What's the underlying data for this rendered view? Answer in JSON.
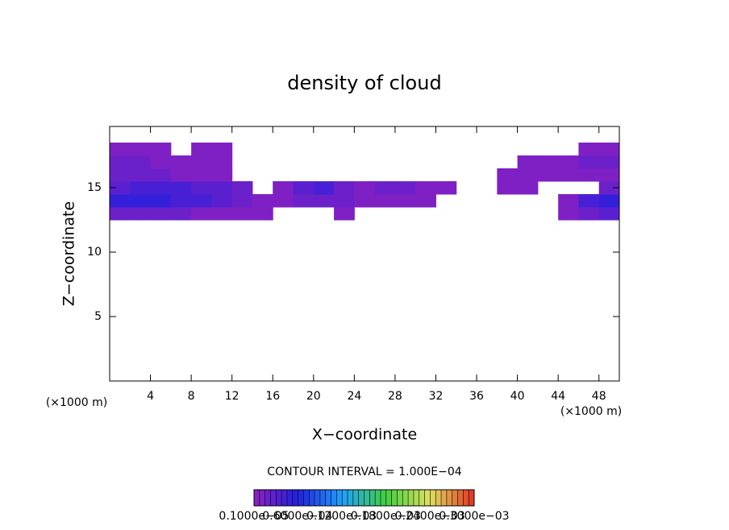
{
  "chart_data": {
    "type": "heatmap",
    "title": "density of cloud",
    "xlabel": "X−coordinate",
    "ylabel": "Z−coordinate",
    "xunit": "(×1000 m)",
    "yunit": "(×1000 m)",
    "annotation": "CONTOUR INTERVAL = 1.000E−04",
    "xlim": [
      0,
      50
    ],
    "ylim": [
      0,
      19.75
    ],
    "xticks": [
      4,
      8,
      12,
      16,
      20,
      24,
      28,
      32,
      36,
      40,
      44,
      48
    ],
    "yticks": [
      5,
      10,
      15
    ],
    "x": [
      1,
      3,
      5,
      7,
      9,
      11,
      13,
      15,
      17,
      19,
      21,
      23,
      25,
      27,
      29,
      31,
      33,
      35,
      37,
      39,
      41,
      43,
      45,
      47,
      49
    ],
    "y": [
      13,
      14,
      15,
      16,
      17,
      18
    ],
    "z": [
      [
        2e-05,
        2e-05,
        2e-05,
        2e-05,
        1e-05,
        1e-05,
        1e-05,
        1e-05,
        null,
        null,
        null,
        1e-05,
        null,
        null,
        null,
        null,
        null,
        null,
        null,
        null,
        null,
        null,
        1e-05,
        2e-05,
        3e-05
      ],
      [
        5e-05,
        5e-05,
        5e-05,
        4e-05,
        4e-05,
        3e-05,
        2e-05,
        1e-05,
        1e-05,
        2e-05,
        2e-05,
        2e-05,
        1e-05,
        1e-05,
        1e-05,
        1e-05,
        null,
        null,
        null,
        null,
        null,
        null,
        1e-05,
        4e-05,
        5e-05
      ],
      [
        3e-05,
        4e-05,
        4e-05,
        4e-05,
        3e-05,
        3e-05,
        2e-05,
        null,
        1e-05,
        3e-05,
        4e-05,
        2e-05,
        1e-05,
        2e-05,
        2e-05,
        1e-05,
        1e-05,
        null,
        null,
        1e-05,
        1e-05,
        null,
        null,
        null,
        2e-05
      ],
      [
        2e-05,
        2e-05,
        2e-05,
        1e-05,
        1e-05,
        1e-05,
        null,
        null,
        null,
        null,
        null,
        null,
        null,
        null,
        null,
        null,
        null,
        null,
        null,
        1e-05,
        1e-05,
        1e-05,
        1e-05,
        1e-05,
        1e-05
      ],
      [
        2e-05,
        2e-05,
        1e-05,
        1e-05,
        1e-05,
        1e-05,
        null,
        null,
        null,
        null,
        null,
        null,
        null,
        null,
        null,
        null,
        null,
        null,
        null,
        null,
        1e-05,
        1e-05,
        1e-05,
        2e-05,
        2e-05
      ],
      [
        1e-05,
        1e-05,
        1e-05,
        null,
        1e-05,
        1e-05,
        null,
        null,
        null,
        null,
        null,
        null,
        null,
        null,
        null,
        null,
        null,
        null,
        null,
        null,
        null,
        null,
        null,
        1e-05,
        1e-05
      ]
    ],
    "colorscale": [
      "#9020c0",
      "#2020e0",
      "#20a0ff",
      "#40d040",
      "#e0e060",
      "#e03020"
    ],
    "colorbar_ticks": [
      {
        "value": 1e-06,
        "label": "0.1000e−05"
      },
      {
        "value": 6e-05,
        "label": "0.6000e−04"
      },
      {
        "value": 0.00012,
        "label": "0.1200e−03"
      },
      {
        "value": 0.00018,
        "label": "0.1800e−03"
      },
      {
        "value": 0.00024,
        "label": "0.2400e−03"
      },
      {
        "value": 0.0003,
        "label": "0.3000e−03"
      }
    ]
  }
}
